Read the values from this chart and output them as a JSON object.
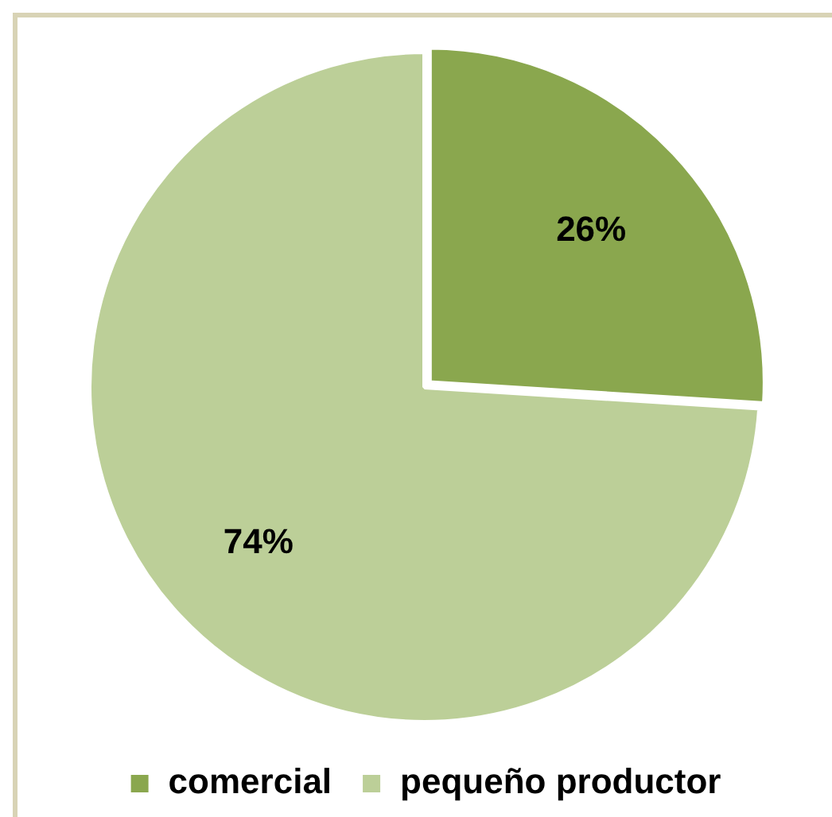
{
  "chart_data": {
    "type": "pie",
    "categories": [
      "comercial",
      "pequeño productor"
    ],
    "values": [
      26,
      74
    ],
    "colors": [
      "#8aa74e",
      "#bccf98"
    ],
    "value_labels": [
      "26%",
      "74%"
    ],
    "legend": "bottom"
  }
}
